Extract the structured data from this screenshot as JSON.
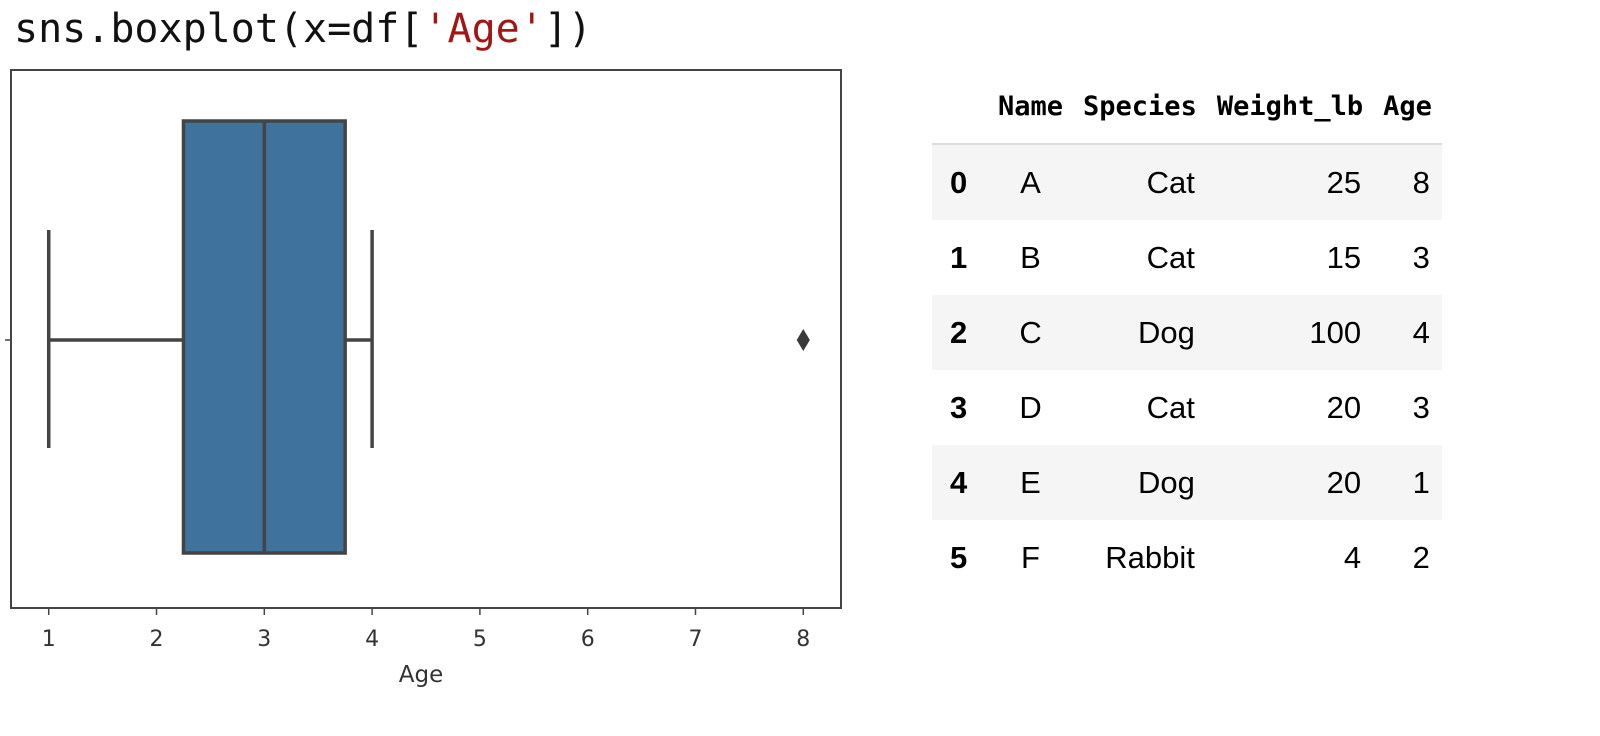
{
  "code": {
    "prefix": "sns.boxplot(x=df[",
    "string_arg": "'Age'",
    "suffix": "])"
  },
  "chart_data": {
    "type": "boxplot",
    "orientation": "horizontal",
    "variable": "Age",
    "xlabel": "Age",
    "xticks": [
      1,
      2,
      3,
      4,
      5,
      6,
      7,
      8
    ],
    "xlim": [
      0.65,
      8.35
    ],
    "stats": {
      "whisker_low": 1,
      "q1": 2.25,
      "median": 3,
      "q3": 3.75,
      "whisker_high": 4,
      "outliers": [
        8
      ]
    },
    "box_color": "#3f729c",
    "edge_color": "#444444",
    "grid": false
  },
  "table": {
    "columns": [
      "",
      "Name",
      "Species",
      "Weight_lb",
      "Age"
    ],
    "rows": [
      [
        "0",
        "A",
        "Cat",
        "25",
        "8"
      ],
      [
        "1",
        "B",
        "Cat",
        "15",
        "3"
      ],
      [
        "2",
        "C",
        "Dog",
        "100",
        "4"
      ],
      [
        "3",
        "D",
        "Cat",
        "20",
        "3"
      ],
      [
        "4",
        "E",
        "Dog",
        "20",
        "1"
      ],
      [
        "5",
        "F",
        "Rabbit",
        "4",
        "2"
      ]
    ]
  }
}
